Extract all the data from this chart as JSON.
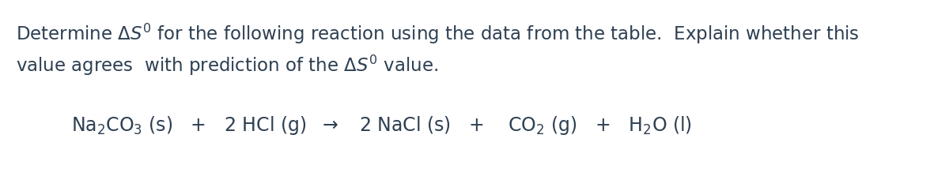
{
  "background_color": "#ffffff",
  "text_color": "#2d3f52",
  "font_size_text": 16.5,
  "font_size_eq": 17.0,
  "fig_width": 12.0,
  "fig_height": 2.23
}
